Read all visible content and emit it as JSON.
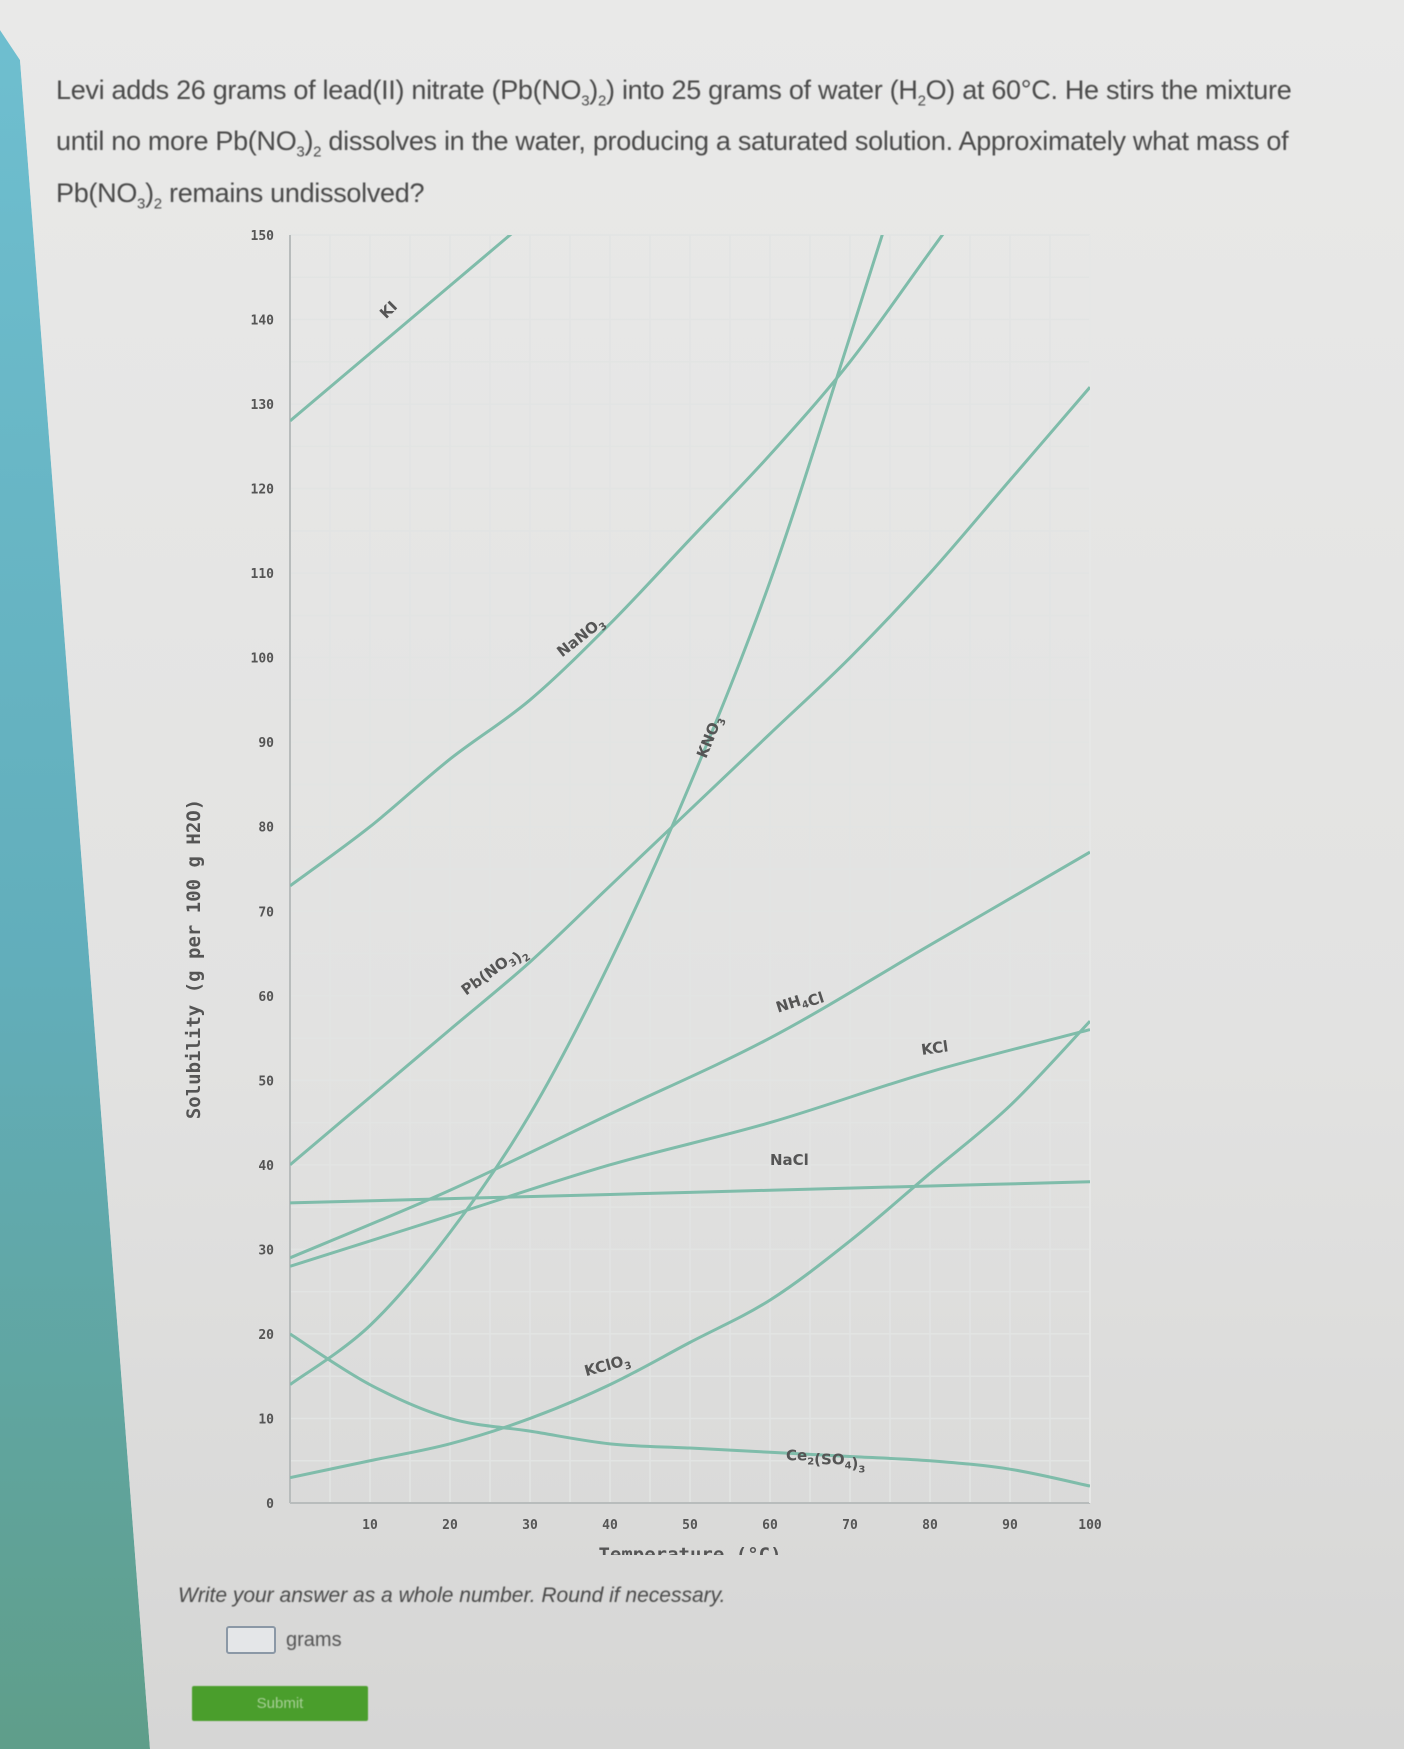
{
  "question": {
    "parts": [
      "Levi adds 26 grams of lead(II) nitrate (Pb(NO",
      "3",
      ")",
      "2",
      ") into 25 grams of water (H",
      "2",
      "O) at 60°C. He stirs the mixture until no more Pb(NO",
      "3",
      ")",
      "2",
      " dissolves in the water, producing a saturated solution. Approximately what mass of Pb(NO",
      "3",
      ")",
      "2",
      " remains undissolved?"
    ]
  },
  "instructions": "Write your answer as a whole number. Round if necessary.",
  "answer": {
    "value": "",
    "unit": "grams"
  },
  "submit_label": "Submit",
  "colors": {
    "curve": "#7fbcaa",
    "axis": "#b8bcbc",
    "grid": "#e2e4e3",
    "button": "#4a9e2c",
    "text": "#4a4a4a"
  },
  "chart_data": {
    "type": "line",
    "title": "",
    "xlabel": "Temperature (°C)",
    "ylabel": "Solubility (g per 100 g H2O)",
    "xlim": [
      0,
      100
    ],
    "ylim": [
      0,
      150
    ],
    "xticks": [
      10,
      20,
      30,
      40,
      50,
      60,
      70,
      80,
      90,
      100
    ],
    "yticks": [
      0,
      10,
      20,
      30,
      40,
      50,
      60,
      70,
      80,
      90,
      100,
      110,
      120,
      130,
      140,
      150
    ],
    "grid": true,
    "series": [
      {
        "name": "KI",
        "label": "KI",
        "x": [
          0,
          10,
          20,
          30
        ],
        "y": [
          128,
          136,
          144,
          152
        ]
      },
      {
        "name": "NaNO3",
        "label": "NaNO3",
        "x": [
          0,
          10,
          20,
          30,
          40,
          50,
          60,
          70,
          80,
          90
        ],
        "y": [
          73,
          80,
          88,
          95,
          104,
          114,
          124,
          135,
          148,
          161
        ]
      },
      {
        "name": "KNO3",
        "label": "KNO3",
        "x": [
          0,
          10,
          20,
          30,
          40,
          50,
          60,
          70,
          80
        ],
        "y": [
          14,
          21,
          32,
          46,
          64,
          85,
          109,
          138,
          168
        ]
      },
      {
        "name": "Pb(NO3)2",
        "label": "Pb(NO3)2",
        "x": [
          0,
          10,
          20,
          30,
          40,
          50,
          60,
          70,
          80,
          90,
          100
        ],
        "y": [
          40,
          48,
          56,
          64,
          73,
          82,
          91,
          100,
          110,
          121,
          132
        ]
      },
      {
        "name": "NH4Cl",
        "label": "NH4Cl",
        "x": [
          0,
          20,
          40,
          60,
          80,
          100
        ],
        "y": [
          29,
          37,
          46,
          55,
          66,
          77
        ]
      },
      {
        "name": "KCl",
        "label": "KCl",
        "x": [
          0,
          20,
          40,
          60,
          80,
          100
        ],
        "y": [
          28,
          34,
          40,
          45,
          51,
          56
        ]
      },
      {
        "name": "NaCl",
        "label": "NaCl",
        "x": [
          0,
          20,
          40,
          60,
          80,
          100
        ],
        "y": [
          35.5,
          36,
          36.5,
          37,
          37.5,
          38
        ]
      },
      {
        "name": "KClO3",
        "label": "KClO3",
        "x": [
          0,
          10,
          20,
          30,
          40,
          50,
          60,
          70,
          80,
          90,
          100
        ],
        "y": [
          3,
          5,
          7,
          10,
          14,
          19,
          24,
          31,
          39,
          47,
          57
        ]
      },
      {
        "name": "Ce2(SO4)3",
        "label": "Ce2(SO4)3",
        "x": [
          0,
          10,
          20,
          30,
          40,
          50,
          60,
          70,
          80,
          90,
          100
        ],
        "y": [
          20,
          14,
          10,
          8.5,
          7,
          6.5,
          6,
          5.5,
          5,
          4,
          2
        ]
      }
    ]
  }
}
